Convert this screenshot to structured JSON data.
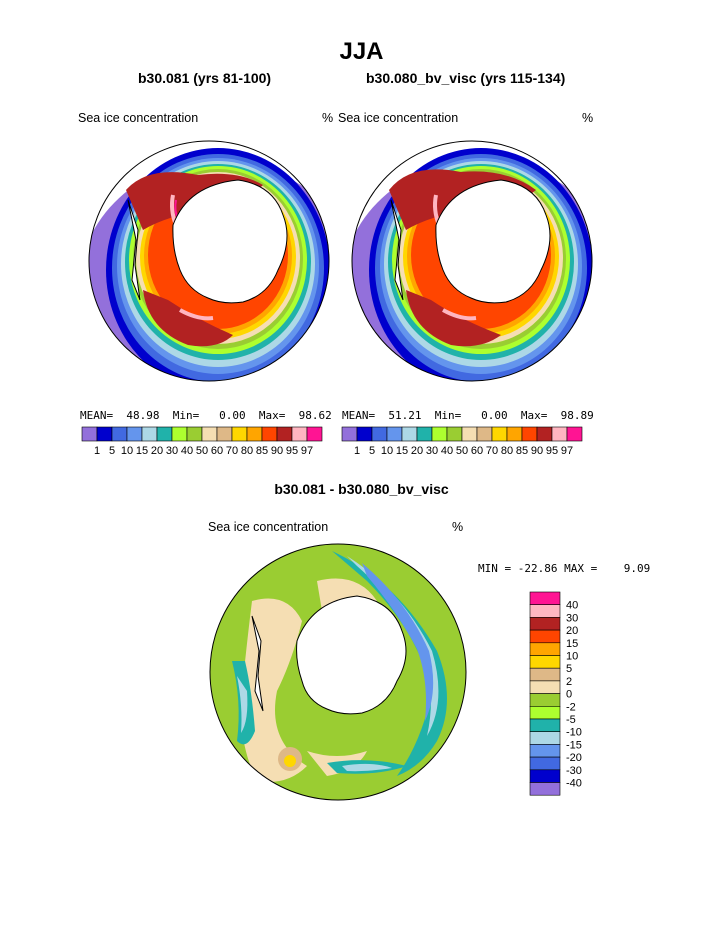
{
  "figure": {
    "title": "JJA",
    "left_panel": {
      "title": "b30.081 (yrs 81-100)",
      "variable": "Sea ice concentration",
      "unit": "%",
      "stats": {
        "mean_label": "MEAN=",
        "mean": "48.98",
        "min_label": "Min=",
        "min": "0.00",
        "max_label": "Max=",
        "max": "98.62"
      }
    },
    "right_panel": {
      "title": "b30.080_bv_visc (yrs 115-134)",
      "variable": "Sea ice concentration",
      "unit": "%",
      "stats": {
        "mean_label": "MEAN=",
        "mean": "51.21",
        "min_label": "Min=",
        "min": "0.00",
        "max_label": "Max=",
        "max": "98.89"
      }
    },
    "diff_panel": {
      "title": "b30.081 - b30.080_bv_visc",
      "variable": "Sea ice concentration",
      "unit": "%",
      "stats": {
        "min_label": "MIN =",
        "min": "-22.86",
        "max_label": "MAX =",
        "max": "9.09"
      }
    }
  },
  "colorbar_concentration": {
    "levels": [
      "1",
      "5",
      "10",
      "15",
      "20",
      "30",
      "40",
      "50",
      "60",
      "70",
      "80",
      "85",
      "90",
      "95",
      "97"
    ],
    "colors": [
      "#9370db",
      "#0000cd",
      "#4169e1",
      "#6495ed",
      "#add8e6",
      "#20b2aa",
      "#adff2f",
      "#9acd32",
      "#f5deb3",
      "#deb887",
      "#ffd700",
      "#ffa500",
      "#ff4500",
      "#b22222",
      "#ffb6c1",
      "#ff1493"
    ]
  },
  "colorbar_difference": {
    "levels": [
      "40",
      "30",
      "20",
      "15",
      "10",
      "5",
      "2",
      "0",
      "-2",
      "-5",
      "-10",
      "-15",
      "-20",
      "-30",
      "-40"
    ],
    "colors": [
      "#ff1493",
      "#ffb6c1",
      "#b22222",
      "#ff4500",
      "#ffa500",
      "#ffd700",
      "#deb887",
      "#f5deb3",
      "#9acd32",
      "#adff2f",
      "#20b2aa",
      "#add8e6",
      "#6495ed",
      "#4169e1",
      "#0000cd",
      "#9370db"
    ]
  }
}
